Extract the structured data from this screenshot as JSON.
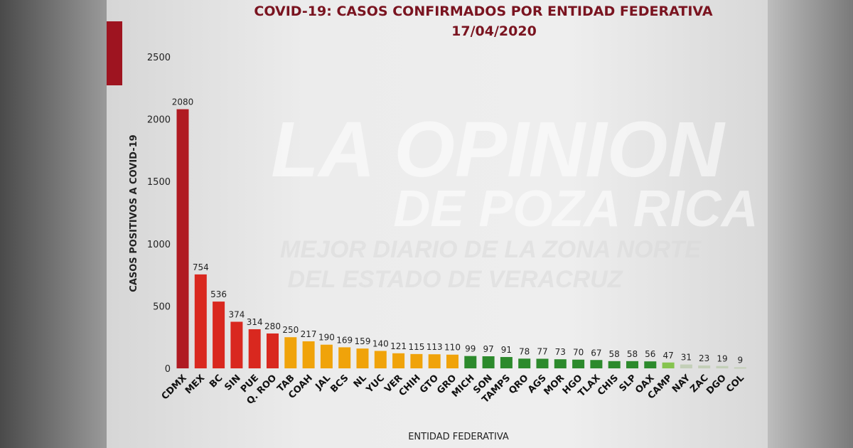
{
  "chart_data": {
    "type": "bar",
    "title": "COVID-19: CASOS CONFIRMADOS POR ENTIDAD FEDERATIVA",
    "subtitle": "17/04/2020",
    "xlabel": "ENTIDAD FEDERATIVA",
    "ylabel": "CASOS POSITIVOS A COVID-19",
    "ylim": [
      0,
      2500
    ],
    "yticks": [
      0,
      500,
      1000,
      1500,
      2000,
      2500
    ],
    "grid": false,
    "categories": [
      "CDMX",
      "MEX",
      "BC",
      "SIN",
      "PUE",
      "Q. ROO",
      "TAB",
      "COAH",
      "JAL",
      "BCS",
      "NL",
      "YUC",
      "VER",
      "CHIH",
      "GTO",
      "GRO",
      "MICH",
      "SON",
      "TAMPS",
      "QRO",
      "AGS",
      "MOR",
      "HGO",
      "TLAX",
      "CHIS",
      "SLP",
      "OAX",
      "CAMP",
      "NAY",
      "ZAC",
      "DGO",
      "COL"
    ],
    "values": [
      2080,
      754,
      536,
      374,
      314,
      280,
      250,
      217,
      190,
      169,
      159,
      140,
      121,
      115,
      113,
      110,
      99,
      97,
      91,
      78,
      77,
      73,
      70,
      67,
      58,
      58,
      56,
      47,
      31,
      23,
      19,
      9
    ],
    "colors": {
      "dark_red": "#b01a22",
      "red": "#d9281f",
      "orange": "#f0a30a",
      "green": "#2c8a2c",
      "light_green": "#86c44f",
      "pale": "#c3cfb8"
    },
    "color_groups": [
      "dark_red",
      "red",
      "red",
      "red",
      "red",
      "red",
      "orange",
      "orange",
      "orange",
      "orange",
      "orange",
      "orange",
      "orange",
      "orange",
      "orange",
      "orange",
      "green",
      "green",
      "green",
      "green",
      "green",
      "green",
      "green",
      "green",
      "green",
      "green",
      "green",
      "light_green",
      "pale",
      "pale",
      "pale",
      "pale"
    ]
  },
  "watermark": {
    "line1": "LA OPINION",
    "line2": "DE POZA RICA",
    "line3": "MEJOR DIARIO DE LA ZONA NORTE",
    "line4": "DEL ESTADO DE VERACRUZ"
  }
}
